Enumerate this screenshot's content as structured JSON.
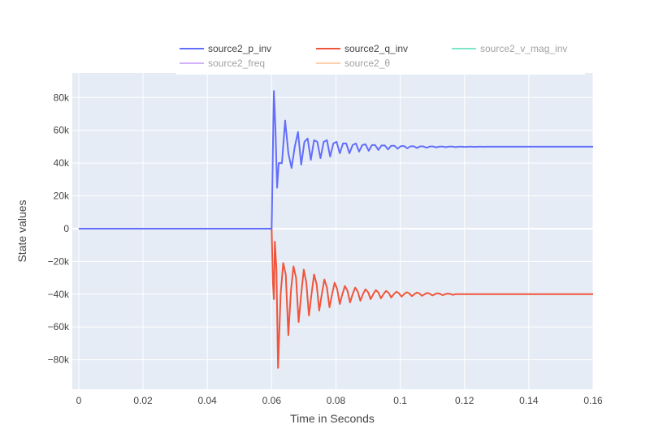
{
  "chart_data": {
    "type": "line",
    "title": "",
    "xlabel": "Time in Seconds",
    "ylabel": "State values",
    "xlim": [
      -0.002,
      0.16
    ],
    "ylim": [
      -98000,
      95000
    ],
    "x_ticks": [
      0,
      0.02,
      0.04,
      0.06,
      0.08,
      0.1,
      0.12,
      0.14,
      0.16
    ],
    "x_tick_labels": [
      "0",
      "0.02",
      "0.04",
      "0.06",
      "0.08",
      "0.1",
      "0.12",
      "0.14",
      "0.16"
    ],
    "y_ticks": [
      -80000,
      -60000,
      -40000,
      -20000,
      0,
      20000,
      40000,
      60000,
      80000
    ],
    "y_tick_labels": [
      "−80k",
      "−60k",
      "−40k",
      "−20k",
      "0",
      "20k",
      "40k",
      "60k",
      "80k"
    ],
    "grid": true,
    "legend_position": "top",
    "series": [
      {
        "name": "source2_p_inv",
        "color": "#636efa",
        "visible": true,
        "x": [
          0,
          0.06,
          0.0601,
          0.0604,
          0.0607,
          0.0612,
          0.0617,
          0.0622,
          0.0632,
          0.0642,
          0.0652,
          0.0662,
          0.0672,
          0.0682,
          0.0692,
          0.0702,
          0.0712,
          0.0722,
          0.0732,
          0.0742,
          0.0752,
          0.0762,
          0.0772,
          0.0782,
          0.0792,
          0.0802,
          0.0812,
          0.0822,
          0.0832,
          0.0842,
          0.0852,
          0.0862,
          0.0872,
          0.0882,
          0.0892,
          0.0902,
          0.0912,
          0.0922,
          0.0932,
          0.0942,
          0.0952,
          0.0962,
          0.0972,
          0.0982,
          0.0992,
          0.1002,
          0.1012,
          0.1022,
          0.1032,
          0.1042,
          0.1052,
          0.1062,
          0.1072,
          0.1082,
          0.1092,
          0.1102,
          0.1112,
          0.1122,
          0.1132,
          0.1142,
          0.1152,
          0.1162,
          0.1172,
          0.1182,
          0.1192,
          0.1202,
          0.1212,
          0.1222,
          0.1232,
          0.1242,
          0.1252,
          0.1262,
          0.1272,
          0.1282,
          0.13,
          0.14,
          0.15,
          0.16
        ],
        "y": [
          0,
          0,
          10000,
          50000,
          84000,
          60000,
          25000,
          40000,
          40000,
          66000,
          46000,
          37000,
          50000,
          59000,
          39000,
          53000,
          55000,
          42000,
          54000,
          53000,
          43000,
          53000,
          54000,
          44000,
          52000,
          53000,
          46000,
          52000,
          52000,
          46000,
          51000,
          52000,
          47000,
          51000,
          51500,
          47500,
          51000,
          51000,
          48000,
          50800,
          50800,
          48400,
          50600,
          50600,
          48800,
          50400,
          50400,
          49000,
          50300,
          50300,
          49200,
          50200,
          50200,
          49400,
          50150,
          50150,
          49600,
          50100,
          50100,
          49700,
          50080,
          50080,
          49800,
          50050,
          50050,
          49850,
          50030,
          50030,
          49900,
          50020,
          50020,
          49950,
          50010,
          50010,
          50000,
          50000,
          50000,
          50000
        ]
      },
      {
        "name": "source2_q_inv",
        "color": "#ef553b",
        "visible": true,
        "x": [
          0,
          0.06,
          0.0604,
          0.0607,
          0.061,
          0.0615,
          0.062,
          0.0628,
          0.0636,
          0.0644,
          0.0652,
          0.066,
          0.0668,
          0.0676,
          0.0684,
          0.0692,
          0.07,
          0.0708,
          0.0716,
          0.0724,
          0.0732,
          0.074,
          0.0748,
          0.0756,
          0.0764,
          0.0772,
          0.078,
          0.0788,
          0.0796,
          0.0804,
          0.0812,
          0.082,
          0.0828,
          0.0836,
          0.0844,
          0.0852,
          0.086,
          0.0868,
          0.0876,
          0.0884,
          0.0892,
          0.09,
          0.0908,
          0.0916,
          0.0924,
          0.0932,
          0.094,
          0.0948,
          0.0956,
          0.0964,
          0.0972,
          0.098,
          0.0988,
          0.0996,
          0.1004,
          0.1012,
          0.102,
          0.1028,
          0.1036,
          0.1044,
          0.1052,
          0.106,
          0.1068,
          0.1076,
          0.1084,
          0.1092,
          0.11,
          0.1108,
          0.1116,
          0.1124,
          0.1132,
          0.114,
          0.1148,
          0.1156,
          0.1164,
          0.1172,
          0.118,
          0.12,
          0.13,
          0.14,
          0.15,
          0.16
        ],
        "y": [
          0,
          0,
          -33000,
          -43000,
          -8000,
          -25000,
          -85000,
          -40000,
          -21000,
          -28000,
          -65000,
          -38000,
          -23000,
          -30000,
          -57000,
          -40000,
          -25000,
          -33000,
          -53000,
          -40000,
          -28000,
          -34000,
          -50000,
          -40000,
          -31000,
          -36000,
          -48000,
          -40000,
          -33000,
          -37000,
          -46000,
          -40000,
          -35000,
          -38000,
          -45000,
          -40000,
          -36000,
          -38500,
          -44000,
          -40000,
          -37000,
          -38800,
          -43000,
          -40000,
          -37500,
          -39000,
          -42500,
          -40000,
          -38000,
          -39200,
          -42000,
          -40000,
          -38500,
          -39400,
          -41500,
          -40000,
          -38800,
          -39500,
          -41200,
          -40000,
          -39000,
          -39600,
          -41000,
          -40000,
          -39200,
          -39700,
          -40800,
          -40000,
          -39400,
          -39800,
          -40600,
          -40000,
          -39600,
          -39900,
          -40400,
          -40000,
          -40000,
          -40000,
          -40000,
          -40000,
          -40000,
          -40000
        ]
      },
      {
        "name": "source2_v_mag_inv",
        "color": "#00cc96",
        "visible": false,
        "x": [],
        "y": []
      },
      {
        "name": "source2_freq",
        "color": "#ab63fa",
        "visible": false,
        "x": [],
        "y": []
      },
      {
        "name": "source2_θ",
        "color": "#ffa15a",
        "visible": false,
        "x": [],
        "y": []
      }
    ]
  }
}
